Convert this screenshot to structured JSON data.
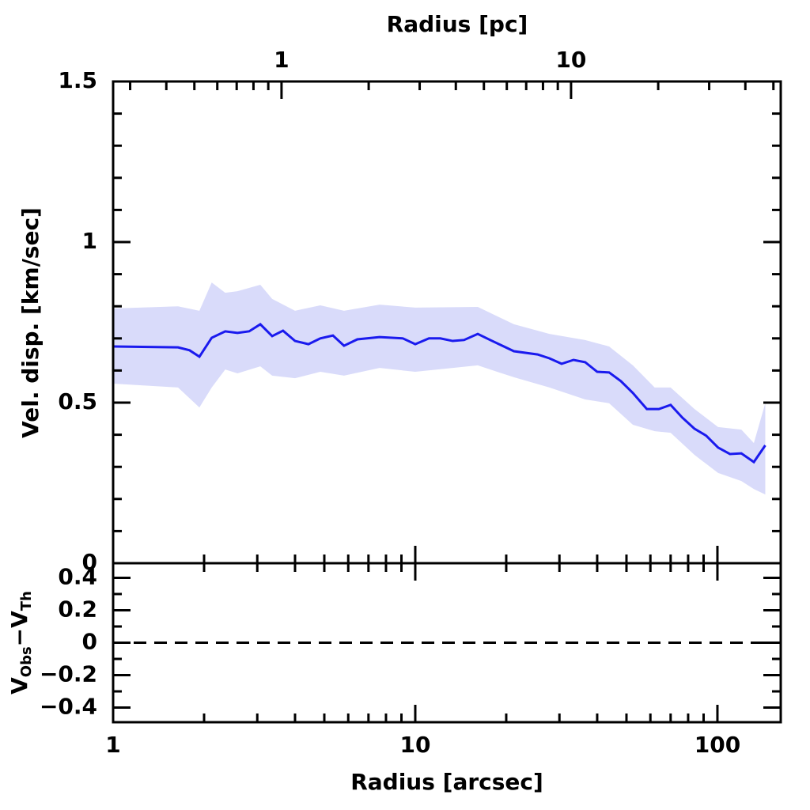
{
  "chart_data": [
    {
      "type": "line",
      "x2label": "Radius [pc]",
      "ylabel": "Vel. disp. [km/sec]",
      "xscale": "log",
      "xlim": [
        1,
        162
      ],
      "x2lim": [
        0.262,
        53
      ],
      "x2ticks": [
        1,
        10
      ],
      "x2ticks_minor": [
        0.3,
        0.4,
        0.5,
        0.6,
        0.7,
        0.8,
        0.9,
        2,
        3,
        4,
        5,
        6,
        7,
        8,
        9,
        20,
        30,
        40,
        50
      ],
      "ylim": [
        0,
        1.5
      ],
      "yticks": [
        0,
        0.5,
        1,
        1.5
      ],
      "yticks_minor": [
        0.1,
        0.2,
        0.3,
        0.4,
        0.6,
        0.7,
        0.8,
        0.9,
        1.1,
        1.2,
        1.3,
        1.4
      ],
      "band": {
        "color": "#d9dbfa",
        "x": [
          1,
          1.64,
          1.93,
          2.12,
          2.35,
          2.58,
          3.07,
          3.36,
          4.0,
          4.85,
          5.81,
          7.62,
          10.0,
          16.1,
          21.2,
          27.8,
          36.5,
          43.8,
          52.5,
          62,
          70,
          84,
          100.5,
          120,
          132,
          144
        ],
        "upper": [
          0.793,
          0.8,
          0.786,
          0.874,
          0.842,
          0.847,
          0.867,
          0.823,
          0.786,
          0.803,
          0.786,
          0.805,
          0.796,
          0.798,
          0.744,
          0.714,
          0.695,
          0.675,
          0.616,
          0.547,
          0.547,
          0.48,
          0.424,
          0.416,
          0.374,
          0.498
        ],
        "lower": [
          0.559,
          0.547,
          0.485,
          0.547,
          0.603,
          0.591,
          0.613,
          0.584,
          0.576,
          0.596,
          0.584,
          0.608,
          0.596,
          0.616,
          0.579,
          0.547,
          0.51,
          0.498,
          0.431,
          0.411,
          0.406,
          0.337,
          0.281,
          0.256,
          0.231,
          0.214
        ]
      },
      "series": [
        {
          "color": "#1a1aee",
          "x": [
            1,
            1.64,
            1.79,
            1.93,
            2.12,
            2.35,
            2.58,
            2.82,
            3.07,
            3.36,
            3.65,
            4.0,
            4.43,
            4.85,
            5.34,
            5.81,
            6.43,
            7.62,
            9.1,
            10.0,
            11.1,
            12.1,
            13.3,
            14.5,
            16.1,
            17.7,
            21.2,
            25.4,
            27.8,
            30.5,
            33.4,
            36.5,
            40.0,
            43.8,
            47.9,
            52.5,
            58.4,
            64.0,
            70.0,
            76.6,
            83.9,
            91.8,
            100.5,
            110,
            120,
            132,
            144
          ],
          "values": [
            0.675,
            0.672,
            0.663,
            0.643,
            0.702,
            0.722,
            0.717,
            0.722,
            0.744,
            0.707,
            0.724,
            0.692,
            0.682,
            0.7,
            0.709,
            0.677,
            0.697,
            0.704,
            0.7,
            0.682,
            0.7,
            0.7,
            0.692,
            0.695,
            0.714,
            0.695,
            0.66,
            0.65,
            0.638,
            0.621,
            0.633,
            0.626,
            0.596,
            0.594,
            0.567,
            0.53,
            0.48,
            0.48,
            0.493,
            0.453,
            0.419,
            0.397,
            0.36,
            0.34,
            0.342,
            0.315,
            0.367
          ]
        }
      ]
    },
    {
      "type": "line",
      "xlabel": "Radius [arcsec]",
      "ylabel_parts": [
        "V",
        "Obs",
        "−V",
        "Th"
      ],
      "xscale": "log",
      "xlim": [
        1,
        162
      ],
      "xticks": [
        1,
        10,
        100
      ],
      "xticks_minor": [
        2,
        3,
        4,
        5,
        6,
        7,
        8,
        9,
        20,
        30,
        40,
        50,
        60,
        70,
        80,
        90
      ],
      "ylim": [
        -0.49,
        0.49
      ],
      "yticks": [
        {
          "value": -0.4,
          "label": "−0.4"
        },
        {
          "value": -0.2,
          "label": "−0.2"
        },
        0,
        0.2,
        0.4
      ],
      "yticks_minor": [
        -0.3,
        -0.1,
        0.1,
        0.3
      ],
      "reference_line": {
        "value": 0,
        "style": "dashed"
      }
    }
  ]
}
